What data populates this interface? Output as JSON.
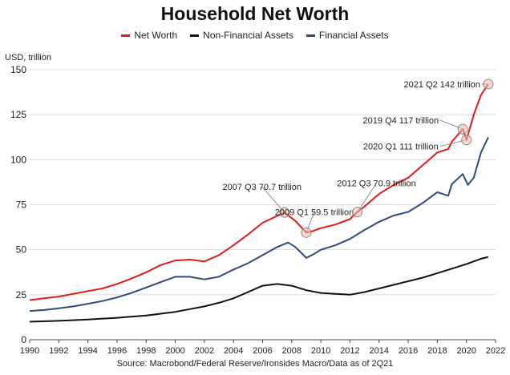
{
  "chart_data": {
    "type": "line",
    "title": "Household Net Worth",
    "ylabel": "USD, trillion",
    "xlabel": "",
    "xlim": [
      1990,
      2022
    ],
    "ylim": [
      0,
      150
    ],
    "xticks": [
      1990,
      1992,
      1994,
      1996,
      1998,
      2000,
      2002,
      2004,
      2006,
      2008,
      2010,
      2012,
      2014,
      2016,
      2018,
      2020,
      2022
    ],
    "yticks": [
      0,
      25,
      50,
      75,
      100,
      125,
      150
    ],
    "grid": "horizontal",
    "legend_position": "top-center",
    "source": "Source: Macrobond/Federal Reserve/Ironsides Macro/Data as of 2Q21",
    "series": [
      {
        "name": "Net Worth",
        "color": "#e31a1c",
        "points": [
          [
            1990,
            22
          ],
          [
            1991,
            23
          ],
          [
            1992,
            24
          ],
          [
            1993,
            25.5
          ],
          [
            1994,
            27
          ],
          [
            1995,
            28.5
          ],
          [
            1996,
            31
          ],
          [
            1997,
            34
          ],
          [
            1998,
            37.5
          ],
          [
            1999,
            41.5
          ],
          [
            2000,
            44
          ],
          [
            2001,
            44.5
          ],
          [
            2002,
            43.5
          ],
          [
            2003,
            47
          ],
          [
            2004,
            52.5
          ],
          [
            2005,
            58.5
          ],
          [
            2006,
            65
          ],
          [
            2007.5,
            70.7
          ],
          [
            2008.25,
            66
          ],
          [
            2009,
            59.5
          ],
          [
            2009.5,
            60.5
          ],
          [
            2010,
            62
          ],
          [
            2011,
            64
          ],
          [
            2012,
            67
          ],
          [
            2012.5,
            70.9
          ],
          [
            2013,
            74
          ],
          [
            2014,
            81
          ],
          [
            2015,
            86
          ],
          [
            2016,
            90
          ],
          [
            2017,
            97
          ],
          [
            2018,
            104
          ],
          [
            2018.75,
            106
          ],
          [
            2019,
            110
          ],
          [
            2019.75,
            117
          ],
          [
            2020,
            111
          ],
          [
            2020.5,
            125
          ],
          [
            2021,
            136
          ],
          [
            2021.5,
            142
          ]
        ]
      },
      {
        "name": "Non-Financial Assets",
        "color": "#111111",
        "points": [
          [
            1990,
            10
          ],
          [
            1992,
            10.5
          ],
          [
            1994,
            11.2
          ],
          [
            1996,
            12.2
          ],
          [
            1998,
            13.5
          ],
          [
            2000,
            15.5
          ],
          [
            2001,
            17
          ],
          [
            2002,
            18.5
          ],
          [
            2003,
            20.5
          ],
          [
            2004,
            23
          ],
          [
            2005,
            26.5
          ],
          [
            2006,
            30
          ],
          [
            2007,
            31
          ],
          [
            2008,
            30
          ],
          [
            2009,
            27.5
          ],
          [
            2010,
            26
          ],
          [
            2011,
            25.5
          ],
          [
            2012,
            25
          ],
          [
            2013,
            26.5
          ],
          [
            2014,
            28.5
          ],
          [
            2015,
            30.5
          ],
          [
            2016,
            32.5
          ],
          [
            2017,
            34.5
          ],
          [
            2018,
            37
          ],
          [
            2019,
            39.5
          ],
          [
            2020,
            42
          ],
          [
            2021,
            45
          ],
          [
            2021.5,
            46
          ]
        ]
      },
      {
        "name": "Financial Assets",
        "color": "#2e4a7d",
        "points": [
          [
            1990,
            16
          ],
          [
            1991,
            16.5
          ],
          [
            1992,
            17.5
          ],
          [
            1993,
            18.5
          ],
          [
            1994,
            20
          ],
          [
            1995,
            21.5
          ],
          [
            1996,
            23.5
          ],
          [
            1997,
            26
          ],
          [
            1998,
            29
          ],
          [
            1999,
            32
          ],
          [
            2000,
            35
          ],
          [
            2001,
            35
          ],
          [
            2002,
            33.5
          ],
          [
            2003,
            35
          ],
          [
            2004,
            39
          ],
          [
            2005,
            42.5
          ],
          [
            2006,
            47
          ],
          [
            2007,
            51.5
          ],
          [
            2007.75,
            54
          ],
          [
            2008.25,
            51.5
          ],
          [
            2009,
            45.5
          ],
          [
            2009.5,
            47.5
          ],
          [
            2010,
            50
          ],
          [
            2011,
            52.5
          ],
          [
            2012,
            56
          ],
          [
            2013,
            61
          ],
          [
            2014,
            65.5
          ],
          [
            2015,
            69
          ],
          [
            2016,
            71
          ],
          [
            2017,
            76
          ],
          [
            2018,
            82
          ],
          [
            2018.75,
            80
          ],
          [
            2019,
            86.5
          ],
          [
            2019.75,
            92
          ],
          [
            2020.1,
            86
          ],
          [
            2020.5,
            90
          ],
          [
            2021,
            104
          ],
          [
            2021.5,
            112.5
          ]
        ]
      }
    ],
    "annotations": [
      {
        "label": "2021 Q2 142 trillion",
        "x": 2021.5,
        "y": 142
      },
      {
        "label": "2019 Q4 117 trillion",
        "x": 2019.75,
        "y": 117
      },
      {
        "label": "2020 Q1 111 trillion",
        "x": 2020.0,
        "y": 111
      },
      {
        "label": "2007 Q3 70.7 trillion",
        "x": 2007.5,
        "y": 70.7
      },
      {
        "label": "2009 Q1 59.5 trillion",
        "x": 2009.0,
        "y": 59.5
      },
      {
        "label": "2012 Q3 70.9 trillion",
        "x": 2012.5,
        "y": 70.9
      }
    ]
  }
}
